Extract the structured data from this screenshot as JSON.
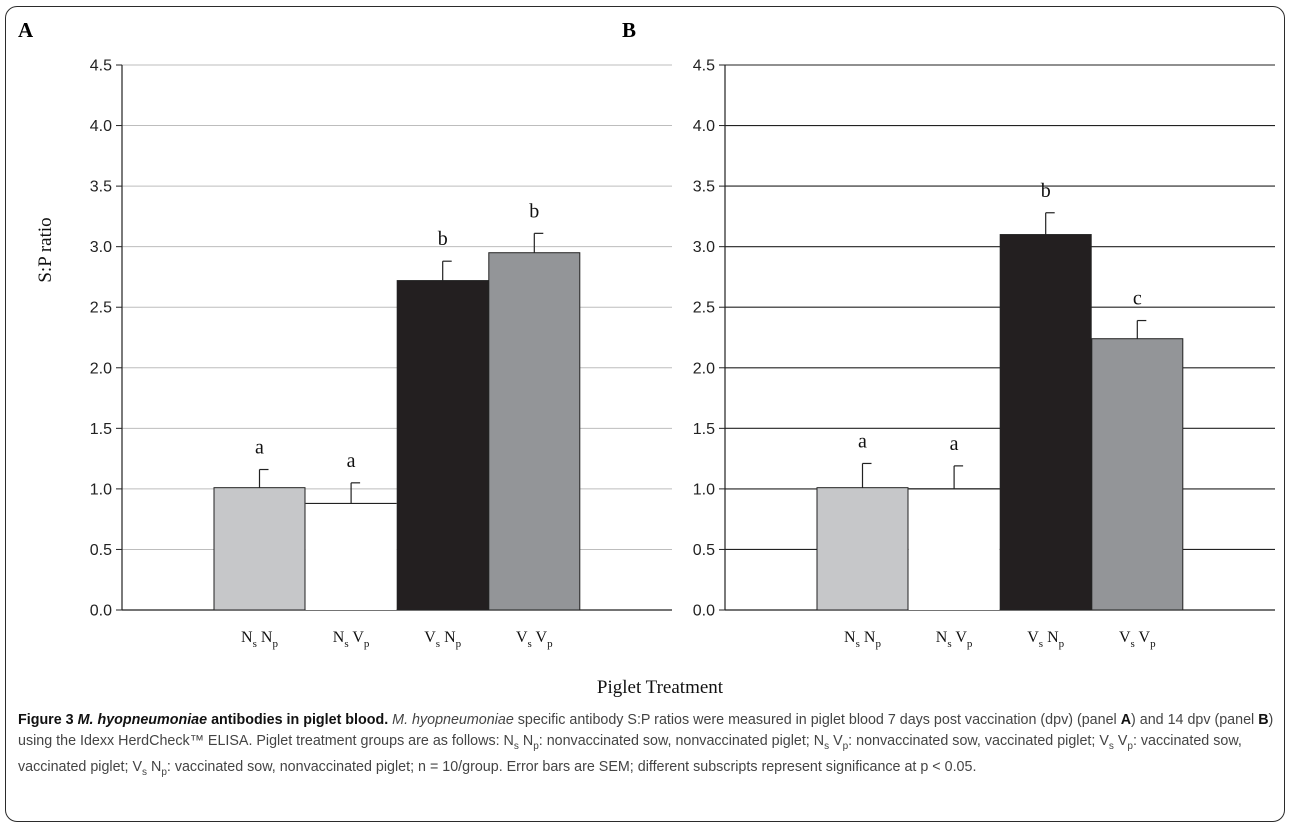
{
  "chart_data": [
    {
      "panel": "A",
      "type": "bar",
      "categories": [
        {
          "main1": "N",
          "sub1": "s",
          "main2": "N",
          "sub2": "p"
        },
        {
          "main1": "N",
          "sub1": "s",
          "main2": "V",
          "sub2": "p"
        },
        {
          "main1": "V",
          "sub1": "s",
          "main2": "N",
          "sub2": "p"
        },
        {
          "main1": "V",
          "sub1": "s",
          "main2": "V",
          "sub2": "p"
        }
      ],
      "values": [
        1.01,
        0.88,
        2.72,
        2.95
      ],
      "errors": [
        0.15,
        0.17,
        0.16,
        0.16
      ],
      "significance": [
        "a",
        "a",
        "b",
        "b"
      ],
      "bar_colors": [
        "#c6c7c9",
        "#ffffff",
        "#231f20",
        "#939598"
      ],
      "ylabel": "S:P ratio",
      "ylim": [
        0,
        4.5
      ],
      "yticks": [
        "0.0",
        "0.5",
        "1.0",
        "1.5",
        "2.0",
        "2.5",
        "3.0",
        "3.5",
        "4.0",
        "4.5"
      ],
      "grid": "horizontal"
    },
    {
      "panel": "B",
      "type": "bar",
      "categories": [
        {
          "main1": "N",
          "sub1": "s",
          "main2": "N",
          "sub2": "p"
        },
        {
          "main1": "N",
          "sub1": "s",
          "main2": "V",
          "sub2": "p"
        },
        {
          "main1": "V",
          "sub1": "s",
          "main2": "N",
          "sub2": "p"
        },
        {
          "main1": "V",
          "sub1": "s",
          "main2": "V",
          "sub2": "p"
        }
      ],
      "values": [
        1.01,
        1.0,
        3.1,
        2.24
      ],
      "errors": [
        0.2,
        0.19,
        0.18,
        0.15
      ],
      "significance": [
        "a",
        "a",
        "b",
        "c"
      ],
      "bar_colors": [
        "#c6c7c9",
        "#ffffff",
        "#231f20",
        "#939598"
      ],
      "ylim": [
        0,
        4.5
      ],
      "yticks": [
        "0.0",
        "0.5",
        "1.0",
        "1.5",
        "2.0",
        "2.5",
        "3.0",
        "3.5",
        "4.0",
        "4.5"
      ],
      "grid": "horizontal"
    }
  ],
  "xlabel": "Piglet Treatment",
  "caption": {
    "label": "Figure 3",
    "title": "M. hyopneumoniae antibodies in piglet blood.",
    "species_italic": "M. hyopneumoniae",
    "text_1": " specific antibody S:P ratios were measured in piglet blood 7 days post vaccination (dpv) (panel ",
    "panel_a": "A",
    "text_2": ") and 14 dpv (panel ",
    "panel_b": "B",
    "text_3": ") using the Idexx HerdCheck™ ELISA. Piglet treatment groups are as follows: ",
    "g1_code": "N",
    "g1_sub1": "s",
    "g1_code2": "N",
    "g1_sub2": "p",
    "g1_desc": ": nonvaccinated sow, nonvaccinated piglet; ",
    "g2_code": "N",
    "g2_sub1": "s",
    "g2_code2": "V",
    "g2_sub2": "p",
    "g2_desc": ": nonvaccinated sow, vaccinated piglet; ",
    "g3_code": "V",
    "g3_sub1": "s",
    "g3_code2": "V",
    "g3_sub2": "p",
    "g3_desc": ": vaccinated sow, vaccinated piglet; ",
    "g4_code": "V",
    "g4_sub1": "s",
    "g4_code2": "N",
    "g4_sub2": "p",
    "g4_desc": ": vaccinated sow, nonvaccinated piglet; n = 10/group. Error bars are SEM; different subscripts represent significance at p < 0.05."
  }
}
